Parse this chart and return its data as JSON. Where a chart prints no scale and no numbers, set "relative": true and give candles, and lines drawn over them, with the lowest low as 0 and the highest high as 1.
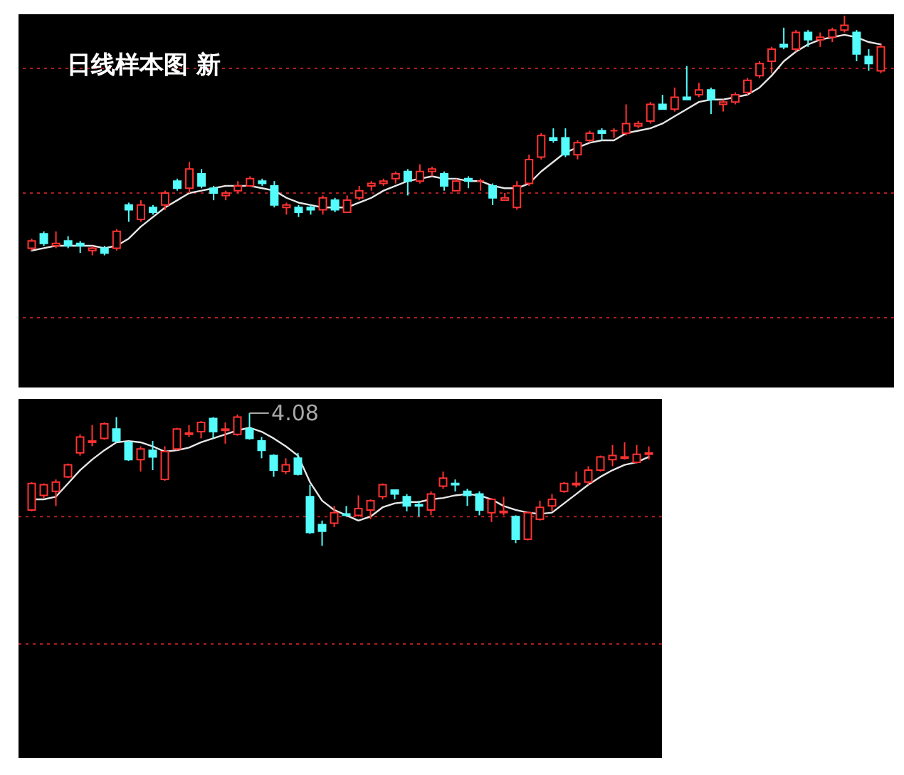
{
  "chart_data": [
    {
      "type": "candlestick",
      "title": "日线样本图 新",
      "relative": true,
      "tick_labels": false,
      "categories": [
        null,
        null,
        null,
        null,
        null,
        null,
        null,
        null,
        null,
        null,
        null,
        null,
        null,
        null,
        null,
        null,
        null,
        null,
        null,
        null,
        null,
        null,
        null,
        null,
        null,
        null,
        null,
        null,
        null,
        null,
        null,
        null,
        null,
        null,
        null,
        null,
        null,
        null,
        null,
        null,
        null,
        null,
        null,
        null,
        null,
        null,
        null,
        null,
        null,
        null,
        null,
        null,
        null,
        null,
        null,
        null,
        null,
        null,
        null,
        null,
        null,
        null,
        null,
        null,
        null,
        null,
        null,
        null,
        null,
        null,
        null
      ],
      "ohlc": [
        [
          0.03,
          0.07,
          0.02,
          0.06
        ],
        [
          0.09,
          0.1,
          0.04,
          0.05
        ],
        [
          0.04,
          0.1,
          0.03,
          0.05
        ],
        [
          0.06,
          0.08,
          0.03,
          0.04
        ],
        [
          0.05,
          0.06,
          0.01,
          0.04
        ],
        [
          0.02,
          0.04,
          0.0,
          0.03
        ],
        [
          0.03,
          0.04,
          0.0,
          0.01
        ],
        [
          0.03,
          0.11,
          0.02,
          0.1
        ],
        [
          0.21,
          0.22,
          0.14,
          0.19
        ],
        [
          0.15,
          0.23,
          0.14,
          0.21
        ],
        [
          0.2,
          0.21,
          0.17,
          0.18
        ],
        [
          0.21,
          0.27,
          0.19,
          0.26
        ],
        [
          0.31,
          0.32,
          0.27,
          0.28
        ],
        [
          0.28,
          0.39,
          0.26,
          0.36
        ],
        [
          0.34,
          0.36,
          0.28,
          0.29
        ],
        [
          0.28,
          0.29,
          0.23,
          0.26
        ],
        [
          0.25,
          0.27,
          0.23,
          0.26
        ],
        [
          0.27,
          0.31,
          0.26,
          0.29
        ],
        [
          0.29,
          0.33,
          0.29,
          0.32
        ],
        [
          0.31,
          0.32,
          0.29,
          0.3
        ],
        [
          0.29,
          0.31,
          0.2,
          0.21
        ],
        [
          0.2,
          0.22,
          0.17,
          0.21
        ],
        [
          0.2,
          0.21,
          0.16,
          0.18
        ],
        [
          0.2,
          0.21,
          0.17,
          0.19
        ],
        [
          0.19,
          0.25,
          0.17,
          0.24
        ],
        [
          0.23,
          0.24,
          0.18,
          0.19
        ],
        [
          0.18,
          0.25,
          0.18,
          0.23
        ],
        [
          0.24,
          0.29,
          0.23,
          0.27
        ],
        [
          0.29,
          0.31,
          0.27,
          0.3
        ],
        [
          0.3,
          0.32,
          0.29,
          0.31
        ],
        [
          0.32,
          0.35,
          0.3,
          0.34
        ],
        [
          0.35,
          0.36,
          0.25,
          0.31
        ],
        [
          0.31,
          0.38,
          0.3,
          0.35
        ],
        [
          0.35,
          0.37,
          0.33,
          0.36
        ],
        [
          0.34,
          0.35,
          0.27,
          0.29
        ],
        [
          0.27,
          0.32,
          0.27,
          0.31
        ],
        [
          0.32,
          0.33,
          0.28,
          0.31
        ],
        [
          0.31,
          0.32,
          0.27,
          0.31
        ],
        [
          0.29,
          0.3,
          0.21,
          0.24
        ],
        [
          0.23,
          0.26,
          0.23,
          0.24
        ],
        [
          0.2,
          0.31,
          0.19,
          0.29
        ],
        [
          0.3,
          0.42,
          0.29,
          0.4
        ],
        [
          0.41,
          0.51,
          0.4,
          0.5
        ],
        [
          0.49,
          0.53,
          0.47,
          0.48
        ],
        [
          0.49,
          0.53,
          0.41,
          0.42
        ],
        [
          0.42,
          0.48,
          0.4,
          0.47
        ],
        [
          0.48,
          0.52,
          0.47,
          0.51
        ],
        [
          0.52,
          0.53,
          0.48,
          0.51
        ],
        [
          0.52,
          0.53,
          0.49,
          0.52
        ],
        [
          0.51,
          0.63,
          0.5,
          0.55
        ],
        [
          0.54,
          0.56,
          0.53,
          0.55
        ],
        [
          0.56,
          0.64,
          0.55,
          0.63
        ],
        [
          0.63,
          0.67,
          0.61,
          0.61
        ],
        [
          0.61,
          0.7,
          0.6,
          0.66
        ],
        [
          0.66,
          0.79,
          0.65,
          0.65
        ],
        [
          0.67,
          0.72,
          0.66,
          0.69
        ],
        [
          0.69,
          0.7,
          0.59,
          0.65
        ],
        [
          0.63,
          0.65,
          0.6,
          0.64
        ],
        [
          0.64,
          0.68,
          0.63,
          0.67
        ],
        [
          0.68,
          0.74,
          0.67,
          0.73
        ],
        [
          0.75,
          0.81,
          0.74,
          0.8
        ],
        [
          0.81,
          0.87,
          0.76,
          0.86
        ],
        [
          0.88,
          0.95,
          0.86,
          0.87
        ],
        [
          0.86,
          0.94,
          0.85,
          0.93
        ],
        [
          0.93,
          0.94,
          0.87,
          0.9
        ],
        [
          0.9,
          0.93,
          0.87,
          0.91
        ],
        [
          0.91,
          0.95,
          0.89,
          0.94
        ],
        [
          0.94,
          1.0,
          0.93,
          0.96
        ],
        [
          0.93,
          0.94,
          0.81,
          0.84
        ],
        [
          0.83,
          0.86,
          0.77,
          0.8
        ],
        [
          0.77,
          0.88,
          0.76,
          0.87
        ]
      ],
      "colors": [
        "#ff3232",
        "#54fcfc",
        "#ff3232",
        "#54fcfc",
        "#54fcfc",
        "#ff3232",
        "#54fcfc",
        "#ff3232",
        "#54fcfc",
        "#ff3232",
        "#54fcfc",
        "#ff3232",
        "#54fcfc",
        "#ff3232",
        "#54fcfc",
        "#54fcfc",
        "#ff3232",
        "#ff3232",
        "#ff3232",
        "#54fcfc",
        "#54fcfc",
        "#ff3232",
        "#54fcfc",
        "#54fcfc",
        "#ff3232",
        "#54fcfc",
        "#ff3232",
        "#ff3232",
        "#ff3232",
        "#ff3232",
        "#ff3232",
        "#54fcfc",
        "#ff3232",
        "#ff3232",
        "#54fcfc",
        "#ff3232",
        "#54fcfc",
        "#ff3232",
        "#54fcfc",
        "#ff3232",
        "#ff3232",
        "#ff3232",
        "#ff3232",
        "#54fcfc",
        "#54fcfc",
        "#ff3232",
        "#ff3232",
        "#54fcfc",
        "#ff3232",
        "#ff3232",
        "#ff3232",
        "#ff3232",
        "#54fcfc",
        "#ff3232",
        "#54fcfc",
        "#ff3232",
        "#54fcfc",
        "#ff3232",
        "#ff3232",
        "#ff3232",
        "#ff3232",
        "#ff3232",
        "#54fcfc",
        "#ff3232",
        "#54fcfc",
        "#ff3232",
        "#ff3232",
        "#ff3232",
        "#54fcfc",
        "#54fcfc",
        "#ff3232"
      ],
      "series": [
        {
          "type": "line",
          "color": "#e6e6e6",
          "values": [
            0.02,
            0.03,
            0.04,
            0.04,
            0.04,
            0.04,
            0.03,
            0.04,
            0.07,
            0.12,
            0.16,
            0.2,
            0.23,
            0.26,
            0.27,
            0.28,
            0.29,
            0.29,
            0.29,
            0.28,
            0.27,
            0.24,
            0.22,
            0.21,
            0.2,
            0.2,
            0.2,
            0.22,
            0.24,
            0.27,
            0.29,
            0.31,
            0.32,
            0.33,
            0.32,
            0.32,
            0.31,
            0.31,
            0.29,
            0.28,
            0.28,
            0.3,
            0.35,
            0.39,
            0.43,
            0.45,
            0.47,
            0.48,
            0.48,
            0.51,
            0.52,
            0.53,
            0.55,
            0.58,
            0.61,
            0.64,
            0.65,
            0.65,
            0.66,
            0.67,
            0.7,
            0.75,
            0.81,
            0.85,
            0.88,
            0.9,
            0.91,
            0.92,
            0.91,
            0.89,
            0.88
          ]
        }
      ],
      "ref_lines": [
        {
          "axis": "y",
          "value": 0.78,
          "color": "#b01e1e",
          "line_style": "dotted"
        },
        {
          "axis": "y",
          "value": 0.26,
          "color": "#b01e1e",
          "line_style": "dotted"
        },
        {
          "axis": "y",
          "value": -0.26,
          "color": "#b01e1e",
          "line_style": "dotted"
        }
      ]
    },
    {
      "type": "candlestick",
      "relative": true,
      "tick_labels": false,
      "categories": [
        null,
        null,
        null,
        null,
        null,
        null,
        null,
        null,
        null,
        null,
        null,
        null,
        null,
        null,
        null,
        null,
        null,
        null,
        null,
        null,
        null,
        null,
        null,
        null,
        null,
        null,
        null,
        null,
        null,
        null,
        null,
        null,
        null,
        null,
        null,
        null,
        null,
        null,
        null,
        null,
        null,
        null,
        null,
        null,
        null,
        null,
        null,
        null,
        null,
        null,
        null,
        null
      ],
      "ohlc": [
        [
          0.27,
          0.48,
          0.26,
          0.47
        ],
        [
          0.38,
          0.47,
          0.36,
          0.46
        ],
        [
          0.41,
          0.5,
          0.3,
          0.48
        ],
        [
          0.52,
          0.62,
          0.51,
          0.61
        ],
        [
          0.7,
          0.84,
          0.68,
          0.82
        ],
        [
          0.78,
          0.91,
          0.75,
          0.79
        ],
        [
          0.81,
          0.93,
          0.8,
          0.92
        ],
        [
          0.88,
          0.97,
          0.78,
          0.79
        ],
        [
          0.78,
          0.79,
          0.64,
          0.65
        ],
        [
          0.65,
          0.75,
          0.56,
          0.73
        ],
        [
          0.72,
          0.79,
          0.57,
          0.67
        ],
        [
          0.5,
          0.75,
          0.49,
          0.71
        ],
        [
          0.73,
          0.89,
          0.72,
          0.88
        ],
        [
          0.84,
          0.91,
          0.82,
          0.85
        ],
        [
          0.86,
          0.94,
          0.81,
          0.93
        ],
        [
          0.96,
          0.97,
          0.81,
          0.86
        ],
        [
          0.87,
          0.93,
          0.77,
          0.88
        ],
        [
          0.84,
          0.99,
          0.83,
          0.97
        ],
        [
          0.88,
          1.0,
          0.8,
          0.81
        ],
        [
          0.79,
          0.82,
          0.66,
          0.72
        ],
        [
          0.68,
          0.69,
          0.52,
          0.57
        ],
        [
          0.56,
          0.66,
          0.54,
          0.61
        ],
        [
          0.66,
          0.7,
          0.53,
          0.54
        ],
        [
          0.37,
          0.46,
          0.09,
          0.1
        ],
        [
          0.16,
          0.19,
          0.0,
          0.11
        ],
        [
          0.17,
          0.3,
          0.14,
          0.25
        ],
        [
          0.24,
          0.3,
          0.22,
          0.23
        ],
        [
          0.23,
          0.38,
          0.22,
          0.28
        ],
        [
          0.27,
          0.35,
          0.2,
          0.34
        ],
        [
          0.37,
          0.47,
          0.35,
          0.46
        ],
        [
          0.42,
          0.42,
          0.35,
          0.39
        ],
        [
          0.37,
          0.39,
          0.26,
          0.3
        ],
        [
          0.31,
          0.34,
          0.22,
          0.3
        ],
        [
          0.27,
          0.41,
          0.23,
          0.39
        ],
        [
          0.45,
          0.56,
          0.43,
          0.51
        ],
        [
          0.47,
          0.5,
          0.41,
          0.46
        ],
        [
          0.41,
          0.43,
          0.3,
          0.38
        ],
        [
          0.39,
          0.41,
          0.23,
          0.27
        ],
        [
          0.25,
          0.36,
          0.18,
          0.35
        ],
        [
          0.25,
          0.37,
          0.23,
          0.26
        ],
        [
          0.22,
          0.23,
          0.02,
          0.05
        ],
        [
          0.05,
          0.26,
          0.04,
          0.25
        ],
        [
          0.2,
          0.34,
          0.19,
          0.29
        ],
        [
          0.3,
          0.39,
          0.26,
          0.35
        ],
        [
          0.41,
          0.48,
          0.4,
          0.47
        ],
        [
          0.46,
          0.56,
          0.44,
          0.47
        ],
        [
          0.48,
          0.6,
          0.46,
          0.57
        ],
        [
          0.57,
          0.68,
          0.56,
          0.67
        ],
        [
          0.65,
          0.76,
          0.6,
          0.68
        ],
        [
          0.66,
          0.78,
          0.65,
          0.67
        ],
        [
          0.63,
          0.76,
          0.62,
          0.69
        ],
        [
          0.69,
          0.75,
          0.65,
          0.7
        ]
      ],
      "colors": [
        "#ff3232",
        "#ff3232",
        "#ff3232",
        "#ff3232",
        "#ff3232",
        "#ff3232",
        "#ff3232",
        "#54fcfc",
        "#54fcfc",
        "#ff3232",
        "#54fcfc",
        "#ff3232",
        "#ff3232",
        "#ff3232",
        "#ff3232",
        "#54fcfc",
        "#ff3232",
        "#ff3232",
        "#54fcfc",
        "#54fcfc",
        "#54fcfc",
        "#ff3232",
        "#54fcfc",
        "#54fcfc",
        "#54fcfc",
        "#ff3232",
        "#54fcfc",
        "#ff3232",
        "#ff3232",
        "#ff3232",
        "#54fcfc",
        "#54fcfc",
        "#54fcfc",
        "#ff3232",
        "#ff3232",
        "#54fcfc",
        "#54fcfc",
        "#54fcfc",
        "#ff3232",
        "#ff3232",
        "#54fcfc",
        "#ff3232",
        "#ff3232",
        "#ff3232",
        "#ff3232",
        "#ff3232",
        "#ff3232",
        "#ff3232",
        "#ff3232",
        "#ff3232",
        "#ff3232",
        "#ff3232"
      ],
      "series": [
        {
          "type": "line",
          "color": "#e6e6e6",
          "values": [
            0.35,
            0.35,
            0.37,
            0.47,
            0.57,
            0.65,
            0.72,
            0.78,
            0.79,
            0.78,
            0.75,
            0.71,
            0.72,
            0.74,
            0.78,
            0.81,
            0.84,
            0.87,
            0.89,
            0.86,
            0.81,
            0.75,
            0.68,
            0.48,
            0.34,
            0.27,
            0.23,
            0.19,
            0.22,
            0.29,
            0.32,
            0.33,
            0.33,
            0.35,
            0.36,
            0.38,
            0.39,
            0.38,
            0.35,
            0.3,
            0.27,
            0.25,
            0.24,
            0.25,
            0.32,
            0.39,
            0.46,
            0.52,
            0.57,
            0.61,
            0.63,
            0.67
          ]
        }
      ],
      "ref_lines": [
        {
          "axis": "y",
          "value": 0.22,
          "color": "#b01e1e",
          "line_style": "dotted"
        },
        {
          "axis": "y",
          "value": -0.74,
          "color": "#b01e1e",
          "line_style": "dotted"
        }
      ],
      "annotations": [
        "4.08"
      ]
    }
  ]
}
